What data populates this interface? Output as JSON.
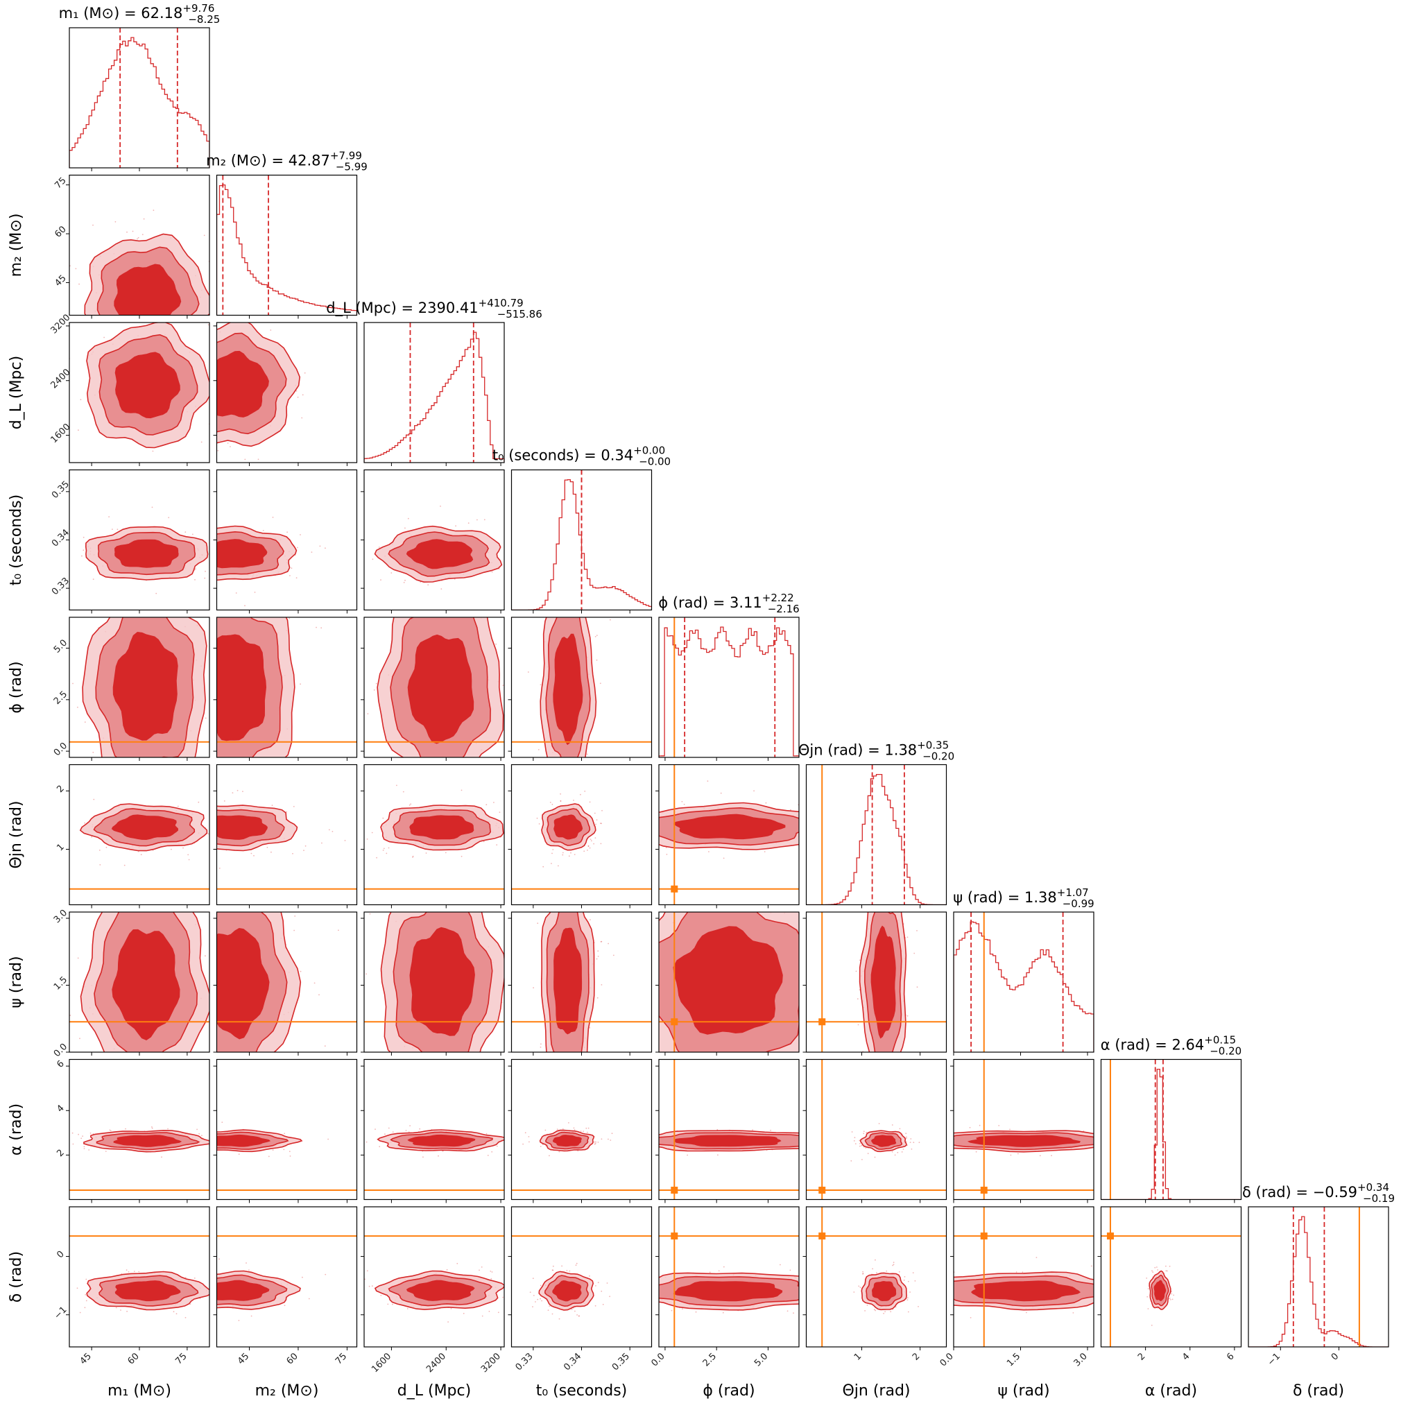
{
  "chart_data": {
    "type": "corner",
    "params": [
      {
        "key": "m1",
        "label": "m₁ (M⊙)",
        "title": "m₁ (M⊙) = 62.18",
        "median": 62.18,
        "err_plus": 9.76,
        "err_minus": 8.25,
        "range": [
          38,
          82
        ],
        "ticks": [
          45,
          60,
          75
        ],
        "tick_labels": [
          "45",
          "60",
          "75"
        ],
        "injection": null
      },
      {
        "key": "m2",
        "label": "m₂ (M⊙)",
        "title": "m₂ (M⊙) = 42.87",
        "median": 42.87,
        "err_plus": 7.99,
        "err_minus": 5.99,
        "range": [
          35,
          78
        ],
        "ticks": [
          45,
          60,
          75
        ],
        "tick_labels": [
          "45",
          "60",
          "75"
        ],
        "injection": null
      },
      {
        "key": "dL",
        "label": "d_L (Mpc)",
        "title": "d_L (Mpc) = 2390.41",
        "median": 2390.41,
        "err_plus": 410.79,
        "err_minus": 515.86,
        "range": [
          1200,
          3250
        ],
        "ticks": [
          1600,
          2400,
          3200
        ],
        "tick_labels": [
          "1600",
          "2400",
          "3200"
        ],
        "injection": null
      },
      {
        "key": "t0",
        "label": "t₀ (seconds)",
        "title": "t₀ (seconds) = 0.34",
        "median": 0.34,
        "err_plus": 0.0,
        "err_minus": 0.0,
        "range": [
          0.3255,
          0.3545
        ],
        "ticks": [
          0.33,
          0.34,
          0.35
        ],
        "tick_labels": [
          "0.33",
          "0.34",
          "0.35"
        ],
        "injection": null
      },
      {
        "key": "phi",
        "label": "ϕ (rad)",
        "title": "ϕ (rad) = 3.11",
        "median": 3.11,
        "err_plus": 2.22,
        "err_minus": 2.16,
        "range": [
          -0.3,
          6.5
        ],
        "ticks": [
          0.0,
          2.5,
          5.0
        ],
        "tick_labels": [
          "0.0",
          "2.5",
          "5.0"
        ],
        "injection": 0.45
      },
      {
        "key": "theta_jn",
        "label": "Θjn (rad)",
        "title": "Θjn (rad) = 1.38",
        "median": 1.38,
        "err_plus": 0.35,
        "err_minus": 0.2,
        "range": [
          0.05,
          2.45
        ],
        "ticks": [
          1,
          2
        ],
        "tick_labels": [
          "1",
          "2"
        ],
        "injection": 0.32
      },
      {
        "key": "psi",
        "label": "ψ (rad)",
        "title": "ψ (rad) = 1.38",
        "median": 1.38,
        "err_plus": 1.07,
        "err_minus": 0.99,
        "range": [
          0.0,
          3.14
        ],
        "ticks": [
          0.0,
          1.5,
          3.0
        ],
        "tick_labels": [
          "0.0",
          "1.5",
          "3.0"
        ],
        "injection": 0.68
      },
      {
        "key": "alpha",
        "label": "α (rad)",
        "title": "α (rad) = 2.64",
        "median": 2.64,
        "err_plus": 0.15,
        "err_minus": 0.2,
        "range": [
          0.0,
          6.3
        ],
        "ticks": [
          2,
          4,
          6
        ],
        "tick_labels": [
          "2",
          "4",
          "6"
        ],
        "injection": 0.42
      },
      {
        "key": "delta",
        "label": "δ (rad)",
        "title": "δ (rad) = −0.59",
        "median": -0.59,
        "err_plus": 0.34,
        "err_minus": 0.19,
        "range": [
          -1.55,
          0.85
        ],
        "ticks": [
          -1,
          0
        ],
        "tick_labels": [
          "−1",
          "0"
        ],
        "injection": 0.35
      }
    ],
    "color": "#d62728",
    "injection_color": "#ff7f0e"
  }
}
